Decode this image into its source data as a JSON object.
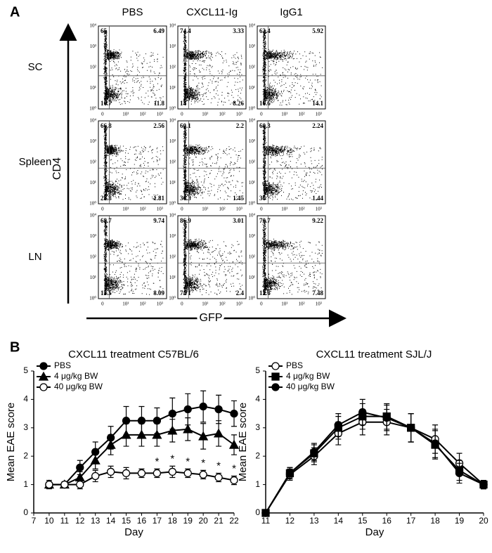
{
  "panel_a": {
    "label": "A",
    "y_axis_label": "CD4",
    "x_axis_label": "GFP",
    "columns": [
      "PBS",
      "CXCL11-Ig",
      "IgG1"
    ],
    "rows": [
      "SC",
      "Spleen",
      "LN"
    ],
    "plot_yticks": [
      "10⁰",
      "10¹",
      "10²",
      "10³",
      "10⁴"
    ],
    "plot_xticks": [
      "0",
      "10¹",
      "10²",
      "10³"
    ],
    "plots": [
      [
        {
          "ul": 65,
          "ur": 6.49,
          "ll": 16.7,
          "lr": 11.8
        },
        {
          "ul": 74.4,
          "ur": 3.33,
          "ll": 14,
          "lr": 8.26
        },
        {
          "ul": 63.4,
          "ur": 5.92,
          "ll": 16.6,
          "lr": 14.1
        }
      ],
      [
        {
          "ul": 66.8,
          "ur": 2.56,
          "ll": 28.8,
          "lr": 1.81
        },
        {
          "ul": 60.1,
          "ur": 2.2,
          "ll": 36.3,
          "lr": 1.45
        },
        {
          "ul": 60.3,
          "ur": 2.24,
          "ll": 36,
          "lr": 1.44
        }
      ],
      [
        {
          "ul": 68.7,
          "ur": 9.74,
          "ll": 13.5,
          "lr": 8.09
        },
        {
          "ul": 86.9,
          "ur": 3.01,
          "ll": 7.71,
          "lr": 2.4
        },
        {
          "ul": 70.7,
          "ur": 9.22,
          "ll": 12.6,
          "lr": 7.48
        }
      ]
    ]
  },
  "panel_b_label": "B",
  "chart_data": [
    {
      "type": "line",
      "title": "CXCL11 treatment C57BL/6",
      "x_label": "Day",
      "y_label": "Mean EAE score",
      "categories": [
        7,
        10,
        11,
        12,
        13,
        14,
        15,
        16,
        17,
        18,
        19,
        20,
        21,
        22
      ],
      "ylim": [
        0,
        5
      ],
      "yticks": [
        0,
        1,
        2,
        3,
        4,
        5
      ],
      "series": [
        {
          "name": "PBS",
          "color": "#000000",
          "marker": "circle",
          "values": [
            null,
            1.0,
            1.0,
            1.6,
            2.15,
            2.65,
            3.25,
            3.25,
            3.25,
            3.5,
            3.65,
            3.75,
            3.65,
            3.5
          ],
          "errors": [
            null,
            0.15,
            0.1,
            0.25,
            0.35,
            0.4,
            0.5,
            0.5,
            0.45,
            0.55,
            0.55,
            0.55,
            0.5,
            0.45
          ]
        },
        {
          "name": "4 μg/kg BW",
          "color": "#000000",
          "marker": "triangle",
          "values": [
            null,
            1.0,
            1.0,
            1.25,
            1.85,
            2.4,
            2.75,
            2.75,
            2.75,
            2.9,
            2.95,
            2.7,
            2.8,
            2.4
          ],
          "errors": [
            null,
            0.1,
            0.1,
            0.2,
            0.3,
            0.35,
            0.4,
            0.4,
            0.4,
            0.4,
            0.4,
            0.45,
            0.45,
            0.35
          ]
        },
        {
          "name": "40 μg/kg BW",
          "color": "#000000",
          "marker": "open-circle",
          "values": [
            null,
            1.0,
            1.0,
            1.0,
            1.3,
            1.45,
            1.4,
            1.4,
            1.4,
            1.45,
            1.4,
            1.35,
            1.25,
            1.15
          ],
          "errors": [
            null,
            0.1,
            0.1,
            0.15,
            0.2,
            0.2,
            0.2,
            0.15,
            0.15,
            0.2,
            0.15,
            0.15,
            0.15,
            0.15
          ]
        }
      ],
      "annotations": [
        {
          "text": "*",
          "category": 8
        },
        {
          "text": "*",
          "category": 9
        },
        {
          "text": "*",
          "category": 10
        },
        {
          "text": "*",
          "category": 11
        },
        {
          "text": "*",
          "category": 12
        },
        {
          "text": "*",
          "category": 13
        }
      ],
      "legend": "upper-left"
    },
    {
      "type": "line",
      "title": "CXCL11 treatment SJL/J",
      "x_label": "Day",
      "y_label": "Mean EAE score",
      "x": [
        11,
        12,
        13,
        14,
        15,
        16,
        17,
        18,
        19,
        20
      ],
      "xlim": [
        11,
        20
      ],
      "xticks": [
        11,
        12,
        13,
        14,
        15,
        16,
        17,
        18,
        19,
        20
      ],
      "ylim": [
        0,
        5
      ],
      "yticks": [
        0,
        1,
        2,
        3,
        4,
        5
      ],
      "series": [
        {
          "name": "PBS",
          "color": "#000000",
          "marker": "open-circle",
          "values": [
            0,
            1.35,
            2.0,
            2.8,
            3.2,
            3.2,
            3.0,
            2.6,
            1.75,
            1.0
          ],
          "errors": [
            0,
            0.2,
            0.3,
            0.4,
            0.45,
            0.45,
            0.5,
            0.5,
            0.35,
            0.15
          ]
        },
        {
          "name": "4 μg/kg BW",
          "color": "#000000",
          "marker": "square",
          "values": [
            0,
            1.4,
            2.1,
            3.0,
            3.4,
            3.4,
            3.0,
            2.4,
            1.5,
            1.0
          ],
          "errors": [
            0,
            0.2,
            0.3,
            0.4,
            0.45,
            0.45,
            0.5,
            0.5,
            0.35,
            0.15
          ]
        },
        {
          "name": "40 μg/kg BW",
          "color": "#000000",
          "marker": "circle",
          "values": [
            0,
            1.4,
            2.15,
            3.1,
            3.55,
            3.35,
            3.0,
            2.45,
            1.4,
            1.0
          ],
          "errors": [
            0,
            0.2,
            0.3,
            0.4,
            0.45,
            0.45,
            0.5,
            0.5,
            0.35,
            0.15
          ]
        }
      ],
      "legend": "upper-left"
    }
  ]
}
